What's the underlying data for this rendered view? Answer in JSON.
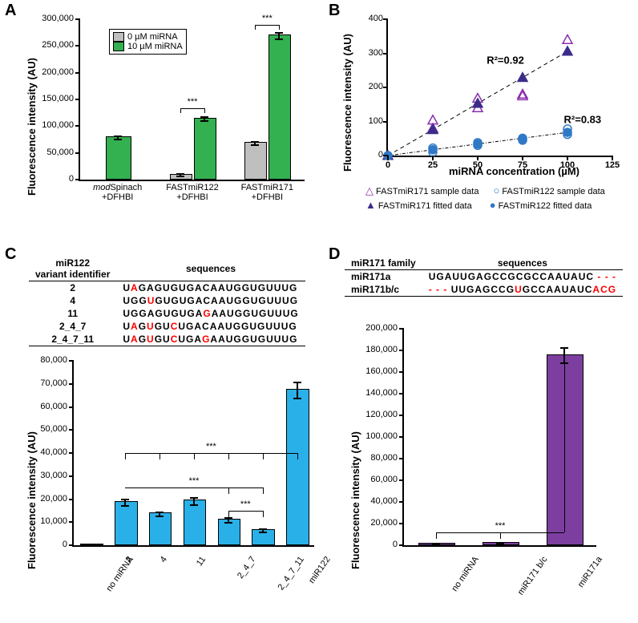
{
  "labels": {
    "A": "A",
    "B": "B",
    "C": "C",
    "D": "D",
    "y_au": "Fluorescence intensity (AU)",
    "x_mirna_conc": "miRNA concentration (µM)"
  },
  "panelA": {
    "type": "bar",
    "ylim": [
      0,
      300000
    ],
    "yticks": [
      0,
      50000,
      100000,
      150000,
      200000,
      250000,
      300000
    ],
    "bar_colors": {
      "zero": "#bfbfbf",
      "ten": "#33b050"
    },
    "legend": [
      {
        "label": "0 µM miRNA",
        "color": "#bfbfbf"
      },
      {
        "label": "10 µM miRNA",
        "color": "#33b050"
      }
    ],
    "groups": [
      {
        "name": "modSpinach\n+DFHBI",
        "pair": false,
        "value": 78000,
        "err": 3000
      },
      {
        "name": "FASTmiR122\n+DFHBI",
        "pair": true,
        "zero": 8000,
        "ten": 113000,
        "err0": 2000,
        "err1": 4000,
        "sig": "***"
      },
      {
        "name": "FASTmiR171\n+DFHBI",
        "pair": true,
        "zero": 67000,
        "ten": 268000,
        "err0": 3000,
        "err1": 6000,
        "sig": "***"
      }
    ]
  },
  "panelB": {
    "type": "scatter",
    "xlim": [
      0,
      125
    ],
    "ylim": [
      0,
      400
    ],
    "xticks": [
      0,
      25,
      50,
      75,
      100,
      125
    ],
    "yticks": [
      0,
      100,
      200,
      300,
      400
    ],
    "series": [
      {
        "name": "FASTmiR171 sample data",
        "marker": "triangle-open",
        "color": "#8b2fb0",
        "points": [
          [
            25,
            80
          ],
          [
            25,
            104
          ],
          [
            50,
            140
          ],
          [
            50,
            168
          ],
          [
            75,
            175
          ],
          [
            75,
            180
          ],
          [
            100,
            340
          ]
        ]
      },
      {
        "name": "FASTmiR171 fitted data",
        "marker": "triangle-filled",
        "color": "#3b2c8a",
        "points": [
          [
            0,
            0
          ],
          [
            25,
            76
          ],
          [
            50,
            153
          ],
          [
            75,
            229
          ],
          [
            100,
            306
          ]
        ],
        "r2": "R²=0.92",
        "r2_pos": [
          55,
          270
        ]
      },
      {
        "name": "FASTmiR122 sample data",
        "marker": "circle-open",
        "color": "#2f78c6",
        "points": [
          [
            25,
            10
          ],
          [
            25,
            22
          ],
          [
            50,
            30
          ],
          [
            50,
            38
          ],
          [
            75,
            45
          ],
          [
            75,
            48
          ],
          [
            100,
            62
          ],
          [
            100,
            78
          ]
        ]
      },
      {
        "name": "FASTmiR122 fitted data",
        "marker": "circle-filled",
        "color": "#2f78c6",
        "points": [
          [
            0,
            0
          ],
          [
            25,
            17
          ],
          [
            50,
            34
          ],
          [
            75,
            51
          ],
          [
            100,
            68
          ]
        ],
        "r2": "R²=0.83",
        "r2_pos": [
          98,
          95
        ]
      }
    ],
    "legend_rows": [
      [
        "△",
        "FASTmiR171 sample data",
        "○",
        "FASTmiR122 sample data"
      ],
      [
        "▲",
        "FASTmiR171 fitted data",
        "●",
        "FASTmiR122 fitted data"
      ]
    ],
    "legend_colors": [
      "#8b2fb0",
      "#2f78c6",
      "#3b2c8a",
      "#2f78c6"
    ]
  },
  "panelC": {
    "table_header": [
      "miR122\nvariant identifier",
      "sequences"
    ],
    "variants": [
      {
        "id": "2",
        "before": "U",
        "mut": "A",
        "after": "GAGUGUGACAAUGGUGUUUG"
      },
      {
        "id": "4",
        "before": "UGG",
        "mut": "U",
        "after": "GUGUGACAAUGGUGUUUG"
      },
      {
        "id": "11",
        "before": "UGGAGUGUGA",
        "mut": "G",
        "after": "AAUGGUGUUUG"
      },
      {
        "id": "2_4_7",
        "before": "U",
        "mut": "A",
        "mid1": "G",
        "mut2": "U",
        "mid2": "GU",
        "mut3": "C",
        "after": "UGACAAUGGUGUUUG"
      },
      {
        "id": "2_4_7_11",
        "before": "U",
        "mut": "A",
        "mid1": "G",
        "mut2": "U",
        "mid2": "GU",
        "mut3": "C",
        "mid3": "UGA",
        "mut4": "G",
        "after": "AAUGGUGUUUG"
      }
    ],
    "chart": {
      "type": "bar",
      "ylim": [
        0,
        80000
      ],
      "yticks": [
        0,
        10000,
        20000,
        30000,
        40000,
        50000,
        60000,
        70000,
        80000
      ],
      "bar_color": "#2ab0e8",
      "categories": [
        "no miRNA",
        "2",
        "4",
        "11",
        "2_4_7",
        "2_4_7_11",
        "miR122"
      ],
      "values": [
        100,
        18500,
        13500,
        19000,
        10800,
        6200,
        67000
      ],
      "errors": [
        100,
        1500,
        800,
        1500,
        900,
        700,
        3500
      ],
      "sig_groups": [
        {
          "from": 1,
          "to": 6,
          "y": 40000,
          "label": "***",
          "targets": [
            1,
            2,
            3,
            4,
            5
          ]
        },
        {
          "from": 1,
          "to": 5,
          "y": 25000,
          "label": "***",
          "targets": [
            4,
            5
          ]
        },
        {
          "from": 4,
          "to": 5,
          "y": 15000,
          "label": "***"
        }
      ]
    }
  },
  "panelD": {
    "table_header": [
      "miR171 family",
      "sequences"
    ],
    "rows": [
      {
        "id": "miR171a",
        "seq_plain": "UGAUUGAGCCGCGCCAAUAUC",
        "suffix_dashes": " - - -"
      },
      {
        "id": "miR171b/c",
        "prefix_dashes": "- - - ",
        "seq_before": "UUGAGCCG",
        "mut": "U",
        "seq_after": "GCCAAUAUC",
        "tail_mut": "ACG"
      }
    ],
    "chart": {
      "type": "bar",
      "ylim": [
        0,
        200000
      ],
      "yticks": [
        0,
        20000,
        40000,
        60000,
        80000,
        100000,
        120000,
        140000,
        160000,
        180000,
        200000
      ],
      "bar_color": "#7c3fa0",
      "categories": [
        "no miRNA",
        "miR171 b/c",
        "miR171a"
      ],
      "values": [
        400,
        1800,
        175000
      ],
      "errors": [
        400,
        500,
        7000
      ],
      "sig": {
        "from": 0,
        "to": 2,
        "y": 12000,
        "label": "***",
        "bigbar_y": 178000
      }
    }
  }
}
